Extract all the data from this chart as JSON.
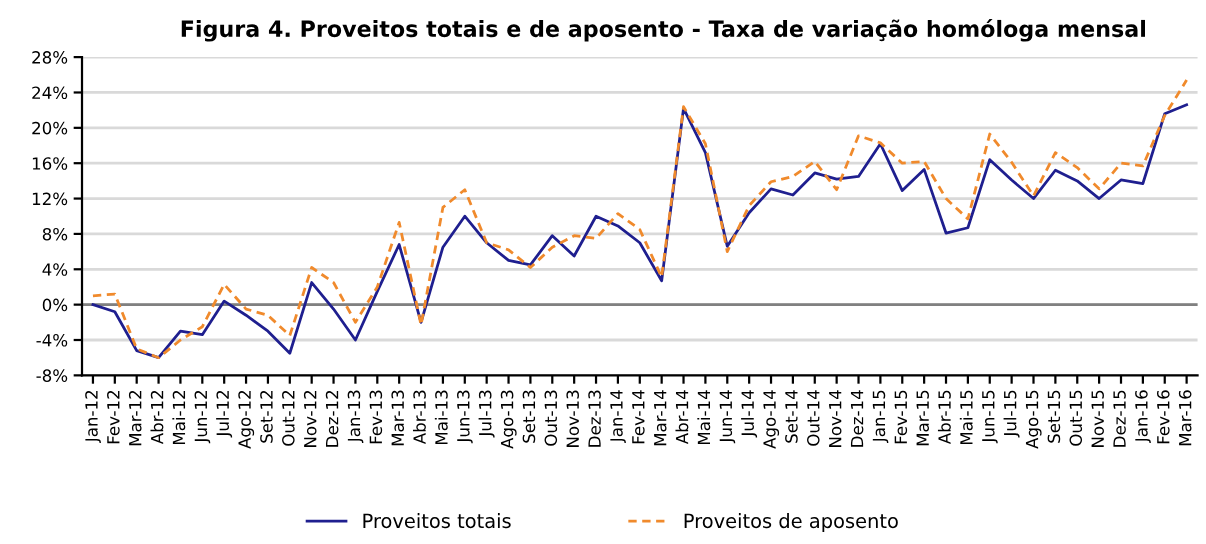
{
  "chart_data": {
    "type": "line",
    "title": "Figura 4. Proveitos totais e de aposento - Taxa de variação homóloga mensal",
    "categories": [
      "Jan-12",
      "Fev-12",
      "Mar-12",
      "Abr-12",
      "Mai-12",
      "Jun-12",
      "Jul-12",
      "Ago-12",
      "Set-12",
      "Out-12",
      "Nov-12",
      "Dez-12",
      "Jan-13",
      "Fev-13",
      "Mar-13",
      "Abr-13",
      "Mai-13",
      "Jun-13",
      "Jul-13",
      "Ago-13",
      "Set-13",
      "Out-13",
      "Nov-13",
      "Dez-13",
      "Jan-14",
      "Fev-14",
      "Mar-14",
      "Abr-14",
      "Mai-14",
      "Jun-14",
      "Jul-14",
      "Ago-14",
      "Set-14",
      "Out-14",
      "Nov-14",
      "Dez-14",
      "Jan-15",
      "Fev-15",
      "Mar-15",
      "Abr-15",
      "Mai-15",
      "Jun-15",
      "Jul-15",
      "Ago-15",
      "Set-15",
      "Out-15",
      "Nov-15",
      "Dez-15",
      "Jan-16",
      "Fev-16",
      "Mar-16"
    ],
    "series": [
      {
        "name": "Proveitos totais",
        "color": "#1f1f8f",
        "line_style": "solid",
        "values": [
          0,
          -0.8,
          -5.2,
          -6,
          -3,
          -3.4,
          0.4,
          -1.2,
          -3,
          -5.5,
          2.5,
          -0.5,
          -4,
          1.5,
          6.8,
          -2,
          6.5,
          10,
          7,
          5,
          4.5,
          7.8,
          5.5,
          10,
          8.9,
          7,
          2.7,
          22.2,
          17.2,
          6.6,
          10.4,
          13.1,
          12.4,
          14.9,
          14.2,
          14.5,
          18.2,
          12.9,
          15.3,
          8.1,
          8.7,
          16.4,
          14.1,
          12,
          15.2,
          14,
          12,
          14.1,
          13.7,
          21.6,
          22.6
        ]
      },
      {
        "name": "Proveitos de aposento",
        "color": "#f08a2c",
        "line_style": "dashed",
        "values": [
          1,
          1.2,
          -5,
          -6,
          -4,
          -2.5,
          2.3,
          -0.5,
          -1.2,
          -3.5,
          4.2,
          2.5,
          -2,
          2,
          9.3,
          -2.3,
          11,
          13,
          7,
          6.2,
          4.2,
          6.5,
          7.8,
          7.5,
          10.3,
          8.5,
          3.1,
          22.4,
          18.2,
          6,
          11.2,
          13.9,
          14.5,
          16.2,
          13,
          19.1,
          18.3,
          16,
          16.2,
          12,
          9.7,
          19.3,
          16.1,
          12.3,
          17.2,
          15.5,
          13.1,
          16,
          15.7,
          21.4,
          25.4
        ]
      }
    ],
    "ylim": [
      -8,
      28
    ],
    "yticks": [
      {
        "value": -8,
        "label": "-8%"
      },
      {
        "value": -4,
        "label": "-4%"
      },
      {
        "value": 0,
        "label": "0%"
      },
      {
        "value": 4,
        "label": "4%"
      },
      {
        "value": 8,
        "label": "8%"
      },
      {
        "value": 12,
        "label": "12%"
      },
      {
        "value": 16,
        "label": "16%"
      },
      {
        "value": 20,
        "label": "20%"
      },
      {
        "value": 24,
        "label": "24%"
      },
      {
        "value": 28,
        "label": "28%"
      }
    ],
    "ref_lines": [
      {
        "axis": "y",
        "value": 0,
        "color": "#808080"
      }
    ],
    "grid": "y",
    "legend": "bottom",
    "marker": "none"
  }
}
